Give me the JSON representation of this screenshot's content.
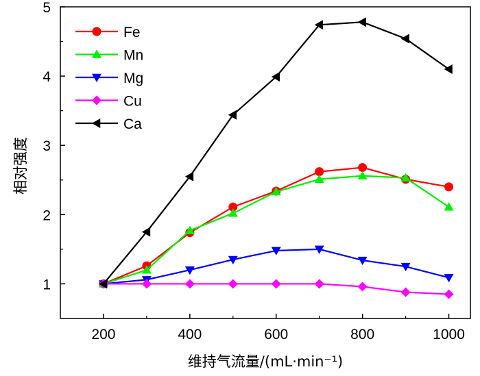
{
  "chart_data": {
    "type": "line",
    "xlabel": "维持气流量/(mL·min⁻¹)",
    "ylabel": "相对强度",
    "x": [
      200,
      300,
      400,
      500,
      600,
      700,
      800,
      900,
      1000
    ],
    "xlim": [
      100,
      1050
    ],
    "ylim": [
      0.5,
      5
    ],
    "xticks": [
      200,
      400,
      600,
      800,
      1000
    ],
    "yticks": [
      1,
      2,
      3,
      4,
      5
    ],
    "grid": false,
    "legend_position": "top-left",
    "series": [
      {
        "name": "Fe",
        "color": "#ff0000",
        "marker": "circle",
        "values": [
          1.0,
          1.26,
          1.74,
          2.11,
          2.34,
          2.62,
          2.68,
          2.51,
          2.4
        ]
      },
      {
        "name": "Mn",
        "color": "#00ee00",
        "marker": "triangle-up",
        "values": [
          1.0,
          1.2,
          1.77,
          2.02,
          2.33,
          2.51,
          2.56,
          2.53,
          2.11
        ]
      },
      {
        "name": "Mg",
        "color": "#0000ff",
        "marker": "triangle-down",
        "values": [
          1.0,
          1.06,
          1.2,
          1.35,
          1.48,
          1.5,
          1.34,
          1.25,
          1.09
        ]
      },
      {
        "name": "Cu",
        "color": "#ff00ff",
        "marker": "diamond",
        "values": [
          1.0,
          1.0,
          1.0,
          1.0,
          1.0,
          1.0,
          0.96,
          0.88,
          0.85
        ]
      },
      {
        "name": "Ca",
        "color": "#000000",
        "marker": "triangle-left",
        "values": [
          1.0,
          1.75,
          2.55,
          3.44,
          3.99,
          4.74,
          4.78,
          4.54,
          4.1
        ]
      }
    ]
  }
}
